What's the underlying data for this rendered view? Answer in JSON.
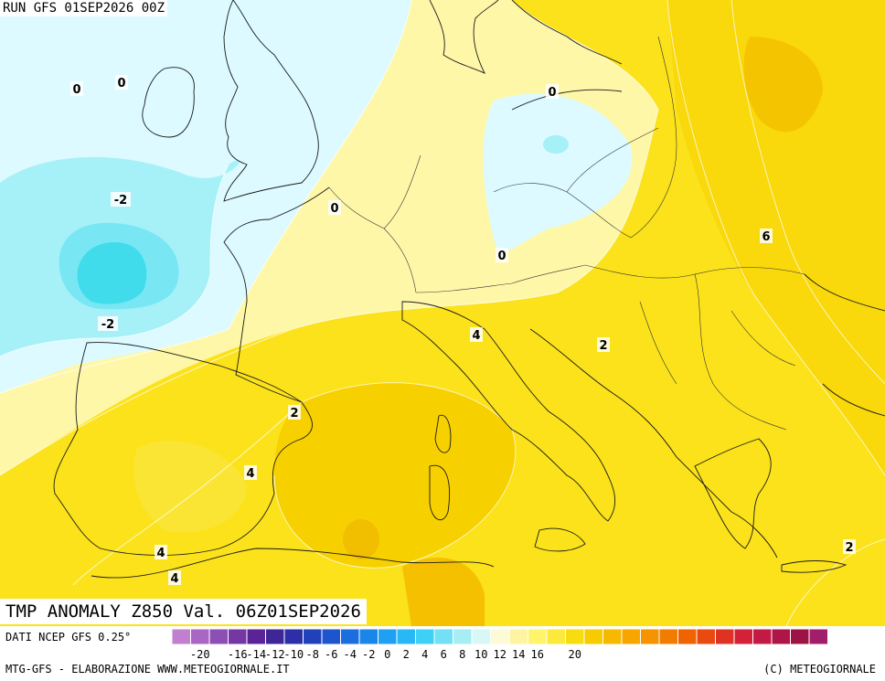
{
  "header": {
    "run": "RUN GFS 01SEP2026 00Z"
  },
  "title": "TMP ANOMALY Z850 Val. 06Z01SEP2026",
  "footer": {
    "source": "DATI NCEP GFS 0.25°",
    "credit": "MTG-GFS - ELABORAZIONE WWW.METEOGIORNALE.IT",
    "copyright": "(C) METEOGIORNALE"
  },
  "contour_labels": [
    "0",
    "0",
    "0",
    "-2",
    "0",
    "-2",
    "0",
    "6",
    "4",
    "2",
    "2",
    "4",
    "4",
    "4",
    "2"
  ],
  "colorbar": {
    "colors": [
      "#c27fd0",
      "#a767c2",
      "#8e4fb4",
      "#7537a4",
      "#5a2496",
      "#3f2596",
      "#2c2fa8",
      "#2340bb",
      "#1f55cc",
      "#1b6ede",
      "#1b86ea",
      "#20a0f2",
      "#28b8f6",
      "#3fd0f7",
      "#72e0f5",
      "#a7eef4",
      "#d8f7f7",
      "#fdfbd6",
      "#fff5a0",
      "#fff46a",
      "#fbe93b",
      "#f7dd10",
      "#f6cc00",
      "#f7b800",
      "#f7a600",
      "#f59300",
      "#f27c00",
      "#ef6300",
      "#e94a10",
      "#e03222",
      "#d22138",
      "#c21a44",
      "#ae1648",
      "#9c1446",
      "#a21e6a"
    ],
    "ticks": [
      "-20",
      "-18",
      "-16",
      "-14",
      "-12",
      "-10",
      "-8",
      "-6",
      "-4",
      "-2",
      "0",
      "2",
      "4",
      "6",
      "8",
      "10",
      "12",
      "14",
      "16",
      "18",
      "20"
    ],
    "tick_shown": [
      "-20",
      "",
      "-16",
      "-14",
      "-12",
      "-10",
      "-8",
      "-6",
      "-4",
      "-2",
      "0",
      "2",
      "4",
      "6",
      "8",
      "10",
      "12",
      "14",
      "16",
      "",
      "20"
    ]
  },
  "palette": {
    "sea_light_yellow": "#fffbb0",
    "cyan_light": "#dcfaff",
    "cyan_mid": "#a6f0f8",
    "cyan_dark": "#40dcec",
    "yellow": "#ffeb2a",
    "yellow_mid": "#fbe11a",
    "yellow_light": "#fff36a",
    "orange_light": "#f7cb00",
    "orange": "#f3b300"
  }
}
